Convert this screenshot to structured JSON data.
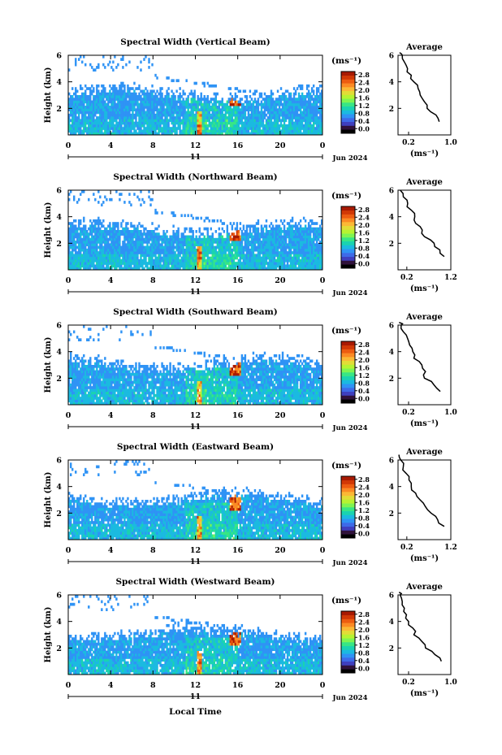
{
  "figure": {
    "xlabel": "Local Time",
    "date_label": "Jun 2024",
    "day_label": "11",
    "ylabel": "Height (km)",
    "cbar_unit": "(ms⁻¹)",
    "avg_title": "Average",
    "avg_xlabel": "(ms⁻¹)"
  },
  "colors": {
    "scale": [
      "#000000",
      "#30123b",
      "#3f3fbf",
      "#3e6ae8",
      "#2f93f5",
      "#1bbae0",
      "#1ad3b0",
      "#38e685",
      "#7ef552",
      "#b6f332",
      "#e2dc37",
      "#fbb836",
      "#fb8a24",
      "#ed5c11",
      "#d13806",
      "#a81a02"
    ]
  },
  "chart_data": [
    {
      "type": "heatmap",
      "title": "Spectral Width (Vertical Beam)",
      "x_range": [
        0,
        24
      ],
      "y_range": [
        0,
        6
      ],
      "x_ticks": [
        "0",
        "4",
        "8",
        "12",
        "16",
        "20",
        "0"
      ],
      "y_ticks": [
        "2",
        "4",
        "6"
      ],
      "colorbar": {
        "ticks": [
          "2.8",
          "2.4",
          "2.0",
          "1.6",
          "1.2",
          "0.8",
          "0.4",
          "0.0"
        ],
        "range": [
          0,
          2.8
        ]
      },
      "avg_profile": {
        "x_ticks": [
          "0.2",
          "1.0"
        ],
        "x_range": [
          0,
          1.0
        ],
        "points": [
          [
            0.78,
            1.0
          ],
          [
            0.72,
            1.5
          ],
          [
            0.55,
            2.0
          ],
          [
            0.5,
            2.5
          ],
          [
            0.42,
            3.0
          ],
          [
            0.38,
            3.5
          ],
          [
            0.3,
            4.0
          ],
          [
            0.25,
            4.5
          ],
          [
            0.18,
            5.0
          ],
          [
            0.12,
            5.5
          ],
          [
            0.08,
            6.0
          ],
          [
            0.03,
            6.2
          ]
        ]
      }
    },
    {
      "type": "heatmap",
      "title": "Spectral Width (Northward Beam)",
      "x_range": [
        0,
        24
      ],
      "y_range": [
        0,
        6
      ],
      "x_ticks": [
        "0",
        "4",
        "8",
        "12",
        "16",
        "20",
        "0"
      ],
      "y_ticks": [
        "2",
        "4",
        "6"
      ],
      "colorbar": {
        "ticks": [
          "2.8",
          "2.4",
          "2.0",
          "1.6",
          "1.2",
          "0.8",
          "0.4",
          "0.0"
        ],
        "range": [
          0,
          2.8
        ]
      },
      "avg_profile": {
        "x_ticks": [
          "0.2",
          "1.2"
        ],
        "x_range": [
          0,
          1.2
        ],
        "points": [
          [
            1.05,
            1.0
          ],
          [
            0.95,
            1.5
          ],
          [
            0.82,
            2.0
          ],
          [
            0.6,
            2.5
          ],
          [
            0.55,
            3.0
          ],
          [
            0.4,
            3.5
          ],
          [
            0.38,
            4.0
          ],
          [
            0.3,
            4.5
          ],
          [
            0.22,
            5.0
          ],
          [
            0.12,
            5.5
          ],
          [
            0.05,
            6.0
          ]
        ]
      }
    },
    {
      "type": "heatmap",
      "title": "Spectral Width (Southward Beam)",
      "x_range": [
        0,
        24
      ],
      "y_range": [
        0,
        6
      ],
      "x_ticks": [
        "0",
        "4",
        "8",
        "12",
        "16",
        "20",
        "0"
      ],
      "y_ticks": [
        "2",
        "4",
        "6"
      ],
      "colorbar": {
        "ticks": [
          "2.8",
          "2.4",
          "2.0",
          "1.6",
          "1.2",
          "0.8",
          "0.4",
          "0.0"
        ],
        "range": [
          0,
          2.8
        ]
      },
      "avg_profile": {
        "x_ticks": [
          "0.2",
          "1.0"
        ],
        "x_range": [
          0,
          1.0
        ],
        "points": [
          [
            0.8,
            1.0
          ],
          [
            0.68,
            1.5
          ],
          [
            0.5,
            2.0
          ],
          [
            0.52,
            2.5
          ],
          [
            0.45,
            3.0
          ],
          [
            0.3,
            3.5
          ],
          [
            0.28,
            4.0
          ],
          [
            0.22,
            4.5
          ],
          [
            0.18,
            5.0
          ],
          [
            0.1,
            5.5
          ],
          [
            0.06,
            6.0
          ],
          [
            0.02,
            6.2
          ]
        ]
      }
    },
    {
      "type": "heatmap",
      "title": "Spectral Width (Eastward Beam)",
      "x_range": [
        0,
        24
      ],
      "y_range": [
        0,
        6
      ],
      "x_ticks": [
        "0",
        "4",
        "8",
        "12",
        "16",
        "20",
        "0"
      ],
      "y_ticks": [
        "2",
        "4",
        "6"
      ],
      "colorbar": {
        "ticks": [
          "2.8",
          "2.4",
          "2.0",
          "1.6",
          "1.2",
          "0.8",
          "0.4",
          "0.0"
        ],
        "range": [
          0,
          2.8
        ]
      },
      "avg_profile": {
        "x_ticks": [
          "0.2",
          "1.2"
        ],
        "x_range": [
          0,
          1.2
        ],
        "points": [
          [
            1.05,
            1.0
          ],
          [
            0.9,
            1.5
          ],
          [
            0.75,
            2.0
          ],
          [
            0.62,
            2.5
          ],
          [
            0.5,
            3.0
          ],
          [
            0.4,
            3.5
          ],
          [
            0.3,
            4.0
          ],
          [
            0.25,
            4.5
          ],
          [
            0.18,
            5.0
          ],
          [
            0.12,
            5.5
          ],
          [
            0.06,
            6.0
          ],
          [
            0.02,
            6.4
          ]
        ]
      }
    },
    {
      "type": "heatmap",
      "title": "Spectral Width (Westward Beam)",
      "x_range": [
        0,
        24
      ],
      "y_range": [
        0,
        6
      ],
      "x_ticks": [
        "0",
        "4",
        "8",
        "12",
        "16",
        "20",
        "0"
      ],
      "y_ticks": [
        "2",
        "4",
        "6"
      ],
      "colorbar": {
        "ticks": [
          "2.8",
          "2.4",
          "2.0",
          "1.6",
          "1.2",
          "0.8",
          "0.4",
          "0.0"
        ],
        "range": [
          0,
          2.8
        ]
      },
      "avg_profile": {
        "x_ticks": [
          "0.2",
          "1.0"
        ],
        "x_range": [
          0,
          1.0
        ],
        "points": [
          [
            0.82,
            1.0
          ],
          [
            0.7,
            1.5
          ],
          [
            0.52,
            2.0
          ],
          [
            0.45,
            2.5
          ],
          [
            0.3,
            3.0
          ],
          [
            0.28,
            3.5
          ],
          [
            0.2,
            4.0
          ],
          [
            0.16,
            4.5
          ],
          [
            0.12,
            5.0
          ],
          [
            0.08,
            5.5
          ],
          [
            0.04,
            6.0
          ],
          [
            0.02,
            6.2
          ]
        ]
      }
    }
  ]
}
